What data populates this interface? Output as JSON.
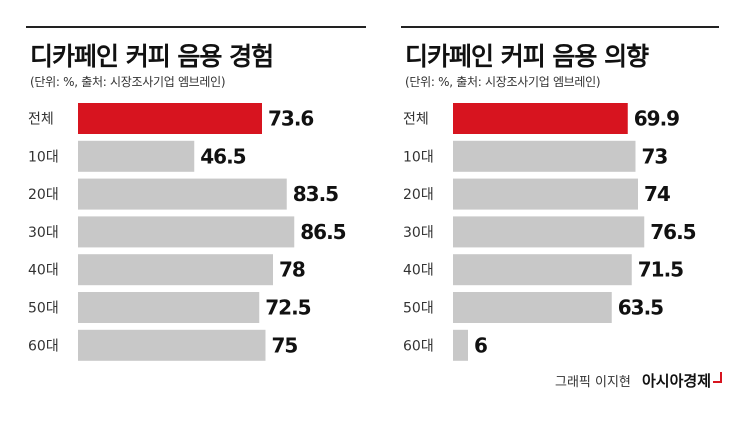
{
  "chart_data": [
    {
      "type": "bar",
      "orientation": "horizontal",
      "title": "디카페인 커피 음용 경험",
      "subtitle": "(단위: %, 출처: 시장조사기업 엠브레인)",
      "categories": [
        "전체",
        "10대",
        "20대",
        "30대",
        "40대",
        "50대",
        "60대"
      ],
      "values": [
        73.6,
        46.5,
        83.5,
        86.5,
        78,
        72.5,
        75
      ],
      "value_labels": [
        "73.6",
        "46.5",
        "83.5",
        "86.5",
        "78",
        "72.5",
        "75"
      ],
      "highlight_index": 0,
      "highlight_color": "#d7141f",
      "bar_color": "#c8c8c8",
      "xlim": [
        0,
        100
      ]
    },
    {
      "type": "bar",
      "orientation": "horizontal",
      "title": "디카페인 커피 음용 의향",
      "subtitle": "(단위: %, 출처: 시장조사기업 엠브레인)",
      "categories": [
        "전체",
        "10대",
        "20대",
        "30대",
        "40대",
        "50대",
        "60대"
      ],
      "values": [
        69.9,
        73,
        74,
        76.5,
        71.5,
        63.5,
        6
      ],
      "value_labels": [
        "69.9",
        "73",
        "74",
        "76.5",
        "71.5",
        "63.5",
        "6"
      ],
      "highlight_index": 0,
      "highlight_color": "#d7141f",
      "bar_color": "#c8c8c8",
      "xlim": [
        0,
        100
      ]
    }
  ],
  "footer": {
    "credit": "그래픽 이지현",
    "brand": "아시아경제"
  }
}
